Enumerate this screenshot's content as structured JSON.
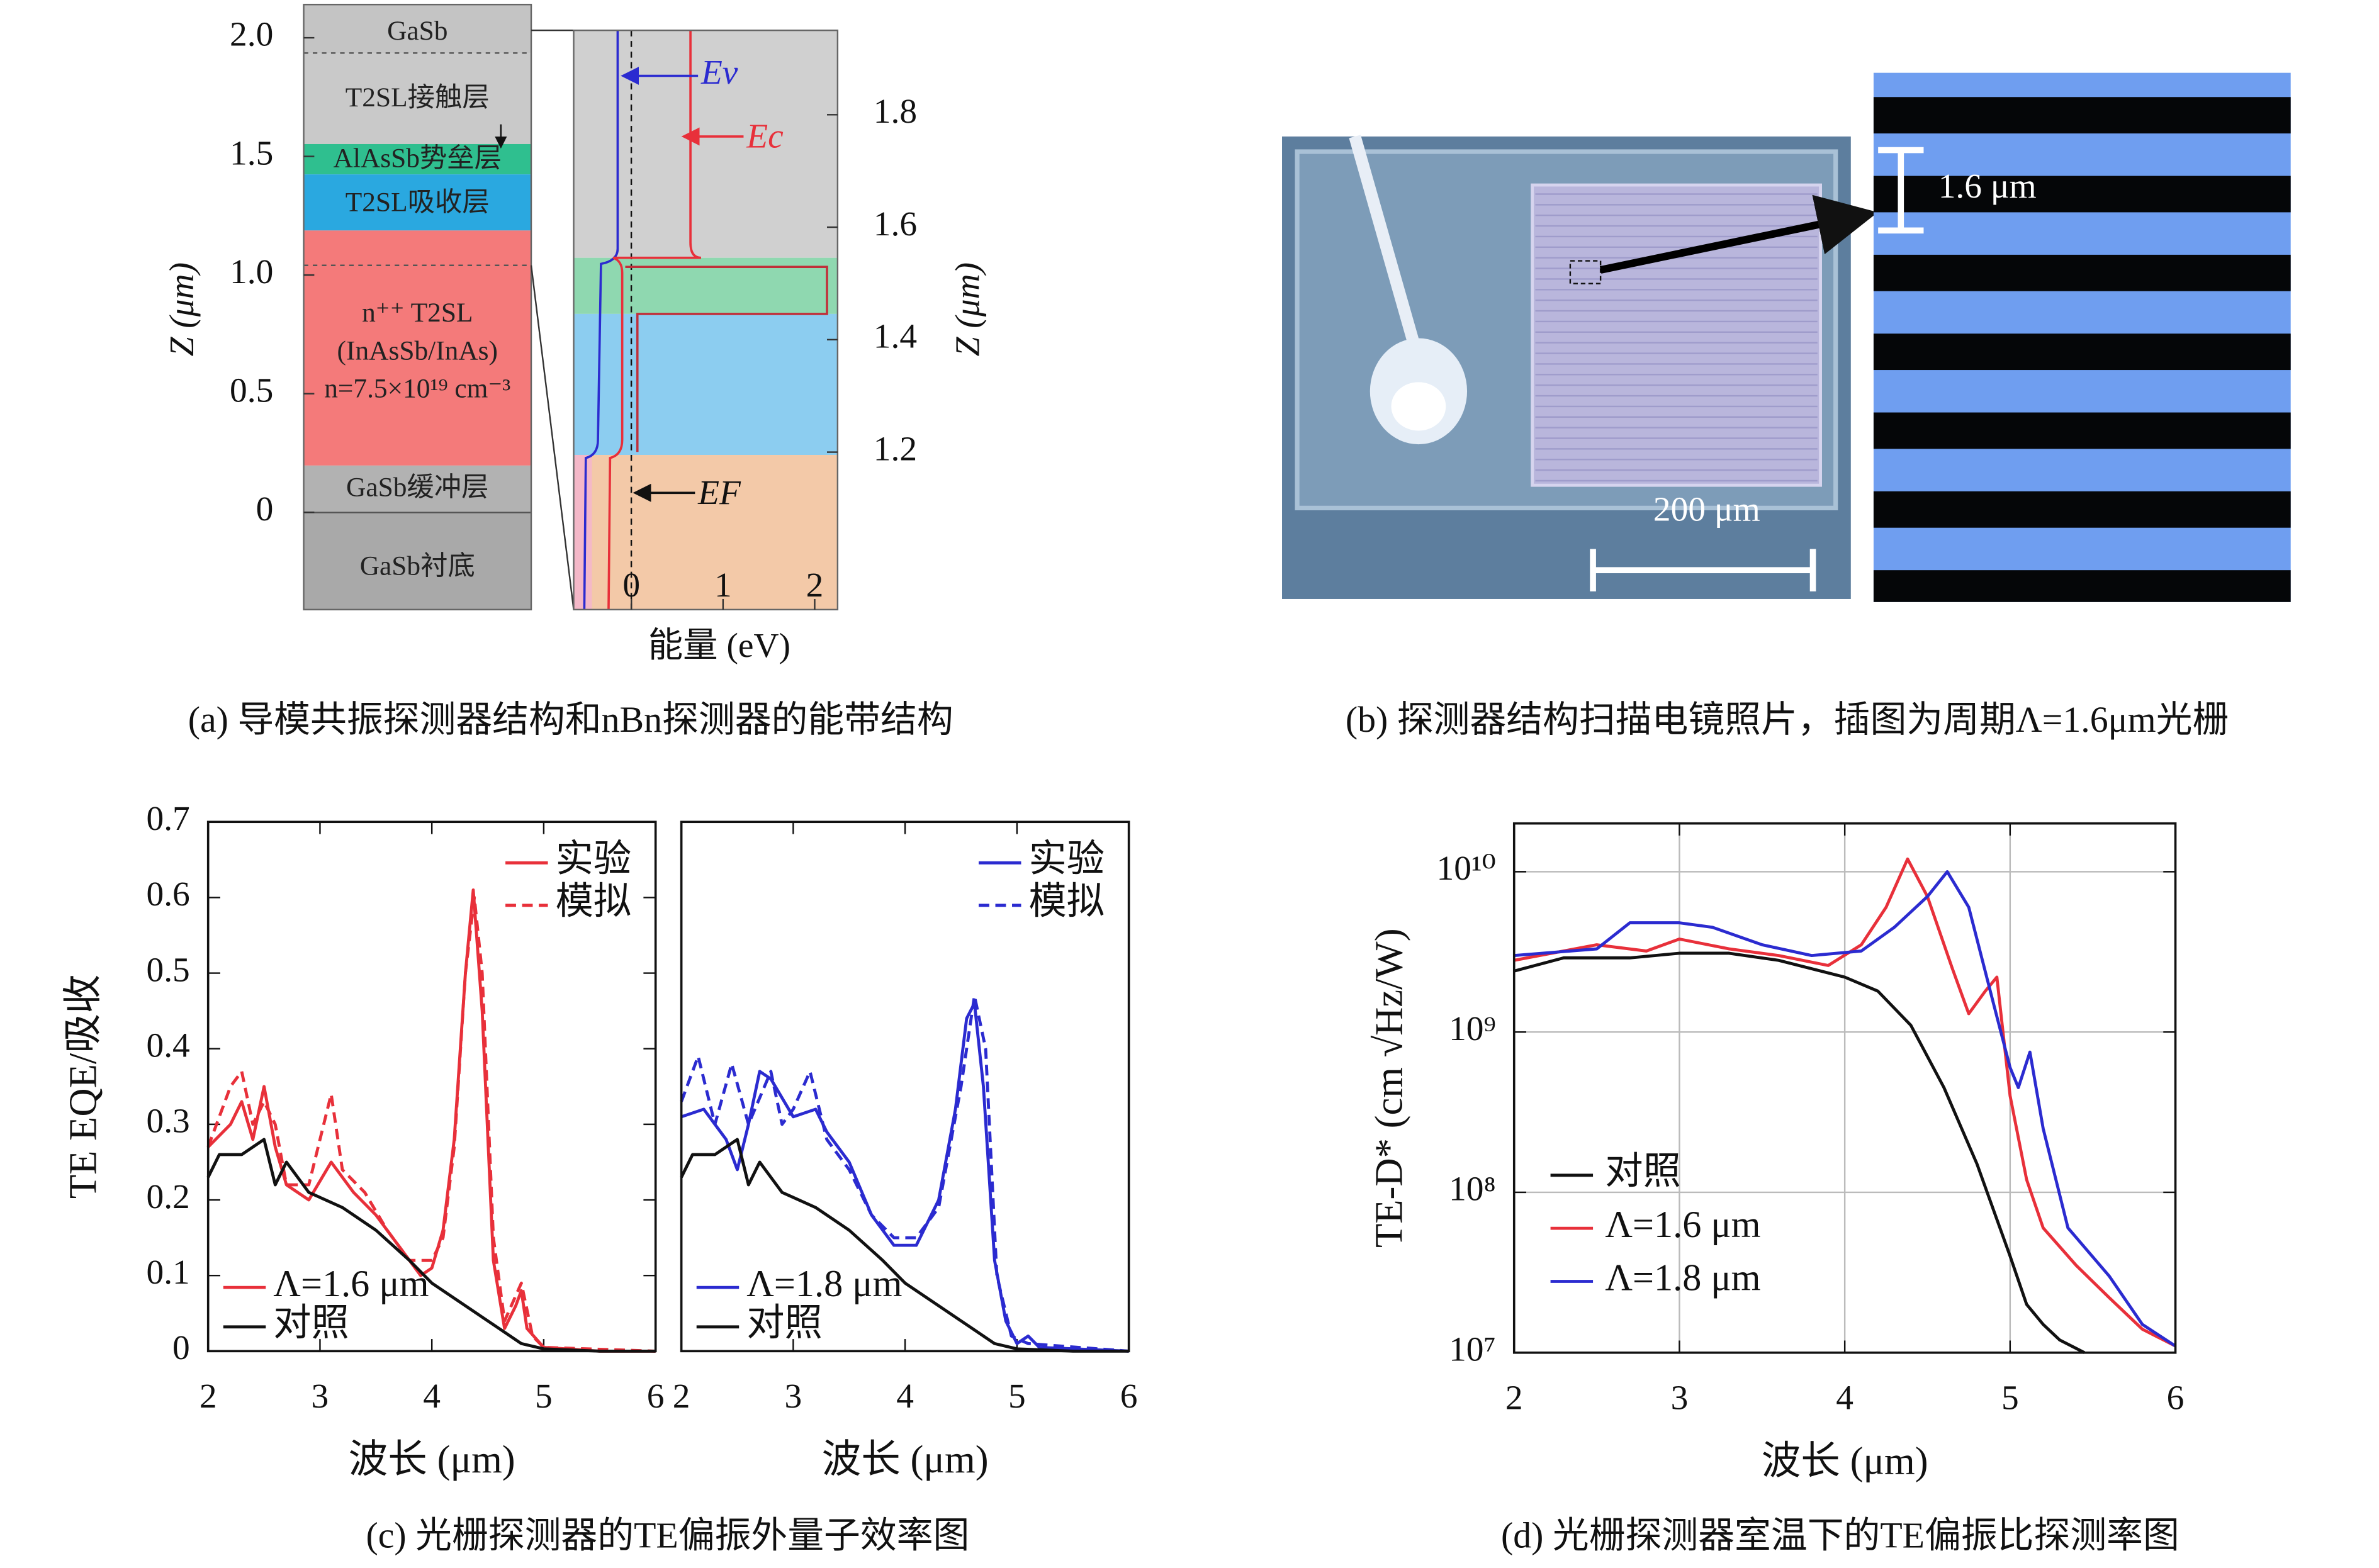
{
  "panel_a": {
    "layers": [
      "GaSb",
      "T2SL接触层",
      "AlAsSb势垒层",
      "T2SL吸收层",
      "n⁺⁺ T2SL",
      "(InAsSb/InAs)",
      "n=7.5×10¹⁹ cm⁻³",
      "GaSb缓冲层",
      "GaSb衬底"
    ],
    "band_labels": [
      "Ev",
      "Ec",
      "EF"
    ],
    "ylabel": "Z (μm)",
    "ylim": [
      -0.41,
      2.14
    ],
    "yticks": [
      {
        "value": 2,
        "label": "2.0"
      },
      1.5,
      {
        "value": 1,
        "label": "1.0"
      },
      0.5,
      0
    ],
    "y2label": "Z (μm)",
    "y2lim": [
      0.92,
      1.95
    ],
    "y2ticks": [
      1.8,
      1.6,
      1.4,
      1.2
    ],
    "xlabel": "能量 (eV)",
    "xlim": [
      -0.63,
      2.25
    ],
    "xticks": [
      0,
      1,
      2
    ]
  },
  "panel_b": {
    "scale_labels": [
      "1.6 μm",
      "200 μm"
    ]
  },
  "captions": [
    "(a) 导模共振探测器结构和nBn探测器的能带结构",
    "(b) 探测器结构扫描电镜照片，插图为周期Λ=1.6μm光栅",
    "(c) 光栅探测器的TE偏振外量子效率图",
    "(d) 光栅探测器室温下的TE偏振比探测率图"
  ],
  "chart_data": [
    {
      "type": "line",
      "ylabel": "TE EQE/吸收",
      "xlabel": "波长 (μm)",
      "sample_label": "Λ=1.6 μm",
      "xlim": [
        2,
        6
      ],
      "ylim": [
        0,
        0.7
      ],
      "xticks": [
        2,
        3,
        4,
        5,
        6
      ],
      "yticks": [
        0,
        0.1,
        0.2,
        0.3,
        0.4,
        0.5,
        0.6,
        0.7
      ],
      "legend": "upper right",
      "series": [
        {
          "name": "实验",
          "color": "#e8303a",
          "style": "solid",
          "x": [
            2.0,
            2.2,
            2.3,
            2.4,
            2.5,
            2.6,
            2.7,
            2.9,
            3.1,
            3.3,
            3.5,
            3.7,
            3.9,
            4.0,
            4.1,
            4.2,
            4.3,
            4.37,
            4.45,
            4.55,
            4.65,
            4.75,
            4.8,
            4.85,
            5.0,
            5.5,
            6.0
          ],
          "values": [
            0.27,
            0.3,
            0.33,
            0.28,
            0.35,
            0.27,
            0.22,
            0.2,
            0.25,
            0.21,
            0.18,
            0.14,
            0.1,
            0.11,
            0.16,
            0.28,
            0.5,
            0.61,
            0.45,
            0.12,
            0.03,
            0.06,
            0.08,
            0.03,
            0.005,
            0,
            0
          ]
        },
        {
          "name": "模拟",
          "color": "#e8303a",
          "style": "dashed",
          "x": [
            2.0,
            2.2,
            2.3,
            2.4,
            2.5,
            2.6,
            2.7,
            2.9,
            3.1,
            3.2,
            3.4,
            3.6,
            3.8,
            4.0,
            4.1,
            4.2,
            4.3,
            4.38,
            4.45,
            4.55,
            4.65,
            4.8,
            4.9,
            5.0,
            6.0
          ],
          "values": [
            0.27,
            0.35,
            0.37,
            0.3,
            0.33,
            0.3,
            0.22,
            0.22,
            0.34,
            0.24,
            0.21,
            0.16,
            0.12,
            0.12,
            0.15,
            0.27,
            0.5,
            0.6,
            0.5,
            0.15,
            0.04,
            0.09,
            0.02,
            0.005,
            0
          ]
        },
        {
          "name": "对照",
          "color": "#111111",
          "style": "solid",
          "x": [
            2.0,
            2.1,
            2.3,
            2.5,
            2.6,
            2.7,
            2.9,
            3.2,
            3.5,
            3.8,
            4.0,
            4.2,
            4.4,
            4.6,
            4.8,
            5.0,
            5.5,
            6.0
          ],
          "values": [
            0.23,
            0.26,
            0.26,
            0.28,
            0.22,
            0.25,
            0.21,
            0.19,
            0.16,
            0.12,
            0.09,
            0.07,
            0.05,
            0.03,
            0.01,
            0.003,
            0,
            0
          ]
        }
      ]
    },
    {
      "type": "line",
      "xlabel": "波长 (μm)",
      "sample_label": "Λ=1.8 μm",
      "xlim": [
        2,
        6
      ],
      "ylim": [
        0,
        0.7
      ],
      "xticks": [
        2,
        3,
        4,
        5,
        6
      ],
      "legend": "upper right",
      "series": [
        {
          "name": "实验",
          "color": "#2b2bd0",
          "style": "solid",
          "x": [
            2.0,
            2.2,
            2.4,
            2.5,
            2.6,
            2.7,
            2.8,
            3.0,
            3.2,
            3.3,
            3.5,
            3.7,
            3.9,
            4.1,
            4.3,
            4.45,
            4.55,
            4.62,
            4.7,
            4.8,
            4.9,
            5.0,
            5.1,
            5.2,
            6.0
          ],
          "values": [
            0.31,
            0.32,
            0.28,
            0.24,
            0.3,
            0.37,
            0.36,
            0.31,
            0.32,
            0.29,
            0.25,
            0.18,
            0.14,
            0.14,
            0.2,
            0.32,
            0.44,
            0.46,
            0.35,
            0.12,
            0.04,
            0.01,
            0.02,
            0.005,
            0
          ]
        },
        {
          "name": "模拟",
          "color": "#2b2bd0",
          "style": "dashed",
          "x": [
            2.0,
            2.15,
            2.3,
            2.45,
            2.6,
            2.8,
            2.9,
            3.0,
            3.15,
            3.3,
            3.5,
            3.7,
            3.9,
            4.1,
            4.3,
            4.5,
            4.62,
            4.72,
            4.82,
            4.95,
            5.1,
            6.0
          ],
          "values": [
            0.33,
            0.39,
            0.3,
            0.38,
            0.3,
            0.37,
            0.3,
            0.32,
            0.37,
            0.28,
            0.24,
            0.18,
            0.15,
            0.15,
            0.19,
            0.35,
            0.47,
            0.4,
            0.1,
            0.02,
            0.01,
            0
          ]
        },
        {
          "name": "对照",
          "color": "#111111",
          "style": "solid",
          "x": [
            2.0,
            2.1,
            2.3,
            2.5,
            2.6,
            2.7,
            2.9,
            3.2,
            3.5,
            3.8,
            4.0,
            4.2,
            4.4,
            4.6,
            4.8,
            5.0,
            5.5,
            6.0
          ],
          "values": [
            0.23,
            0.26,
            0.26,
            0.28,
            0.22,
            0.25,
            0.21,
            0.19,
            0.16,
            0.12,
            0.09,
            0.07,
            0.05,
            0.03,
            0.01,
            0.003,
            0,
            0
          ]
        }
      ]
    },
    {
      "type": "line",
      "ylabel": "TE-D* (cm √Hz/W)",
      "xlabel": "波长 (μm)",
      "log_y": true,
      "grid": true,
      "xlim": [
        2,
        6
      ],
      "ylim": [
        10000000,
        20000000000
      ],
      "xticks": [
        2,
        3,
        4,
        5,
        6
      ],
      "yticks": [
        {
          "value": 10000000,
          "label": "10⁷"
        },
        {
          "value": 100000000,
          "label": "10⁸"
        },
        {
          "value": 1000000000,
          "label": "10⁹"
        },
        {
          "value": 10000000000,
          "label": "10¹⁰"
        }
      ],
      "legend": "lower left",
      "series": [
        {
          "name": "对照",
          "color": "#111111",
          "style": "solid",
          "x": [
            2.0,
            2.3,
            2.7,
            3.0,
            3.3,
            3.6,
            4.0,
            4.2,
            4.4,
            4.6,
            4.8,
            5.0,
            5.1,
            5.2,
            5.3,
            5.45
          ],
          "values": [
            2400000000,
            2900000000,
            2900000000,
            3100000000,
            3100000000,
            2800000000,
            2200000000,
            1800000000,
            1100000000,
            450000000,
            150000000,
            40000000,
            20000000,
            15000000,
            12000000,
            10000000
          ]
        },
        {
          "name": "Λ=1.6 μm",
          "color": "#e8303a",
          "style": "solid",
          "x": [
            2.0,
            2.5,
            2.8,
            3.0,
            3.3,
            3.6,
            3.9,
            4.1,
            4.25,
            4.38,
            4.5,
            4.65,
            4.75,
            4.85,
            4.92,
            5.0,
            5.1,
            5.2,
            5.4,
            5.6,
            5.8,
            6.0
          ],
          "values": [
            2800000000,
            3500000000,
            3200000000,
            3800000000,
            3300000000,
            3000000000,
            2600000000,
            3500000000,
            6000000000,
            12000000000,
            7000000000,
            2500000000,
            1300000000,
            1800000000,
            2200000000,
            400000000,
            120000000,
            60000000,
            35000000,
            22000000,
            14000000,
            11000000
          ]
        },
        {
          "name": "Λ=1.8 μm",
          "color": "#2b2bd0",
          "style": "solid",
          "x": [
            2.0,
            2.5,
            2.7,
            3.0,
            3.2,
            3.5,
            3.8,
            4.1,
            4.3,
            4.5,
            4.62,
            4.75,
            4.9,
            5.0,
            5.05,
            5.12,
            5.2,
            5.35,
            5.6,
            5.8,
            6.0
          ],
          "values": [
            3000000000,
            3300000000,
            4800000000,
            4800000000,
            4500000000,
            3500000000,
            3000000000,
            3200000000,
            4500000000,
            7000000000,
            10000000000,
            6000000000,
            1500000000,
            600000000,
            450000000,
            750000000,
            250000000,
            60000000,
            30000000,
            15000000,
            11000000
          ]
        }
      ]
    }
  ]
}
